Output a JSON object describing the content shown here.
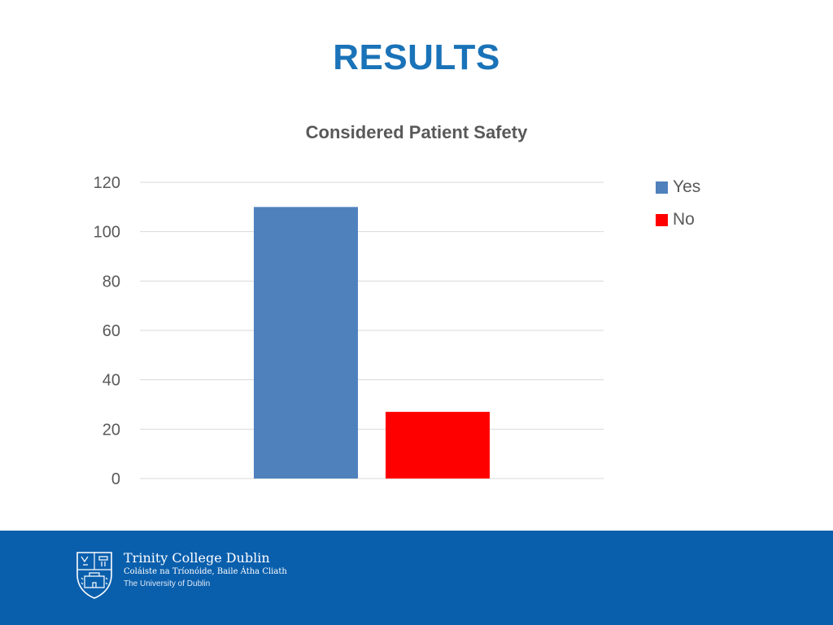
{
  "slide": {
    "title": "RESULTS"
  },
  "chart_data": {
    "type": "bar",
    "title": "Considered Patient Safety",
    "categories": [
      ""
    ],
    "series": [
      {
        "name": "Yes",
        "values": [
          110
        ],
        "color": "#4f81bd"
      },
      {
        "name": "No",
        "values": [
          27
        ],
        "color": "#ff0000"
      }
    ],
    "ylim": [
      0,
      120
    ],
    "yticks": [
      0,
      20,
      40,
      60,
      80,
      100,
      120
    ],
    "grid": true,
    "legend": "right"
  },
  "footer": {
    "org_name": "Trinity College Dublin",
    "org_irish": "Coláiste na Tríonóide, Baile Átha Cliath",
    "org_sub": "The University of Dublin",
    "background": "#0a5fad",
    "logo_icon": "trinity-crest-icon"
  }
}
